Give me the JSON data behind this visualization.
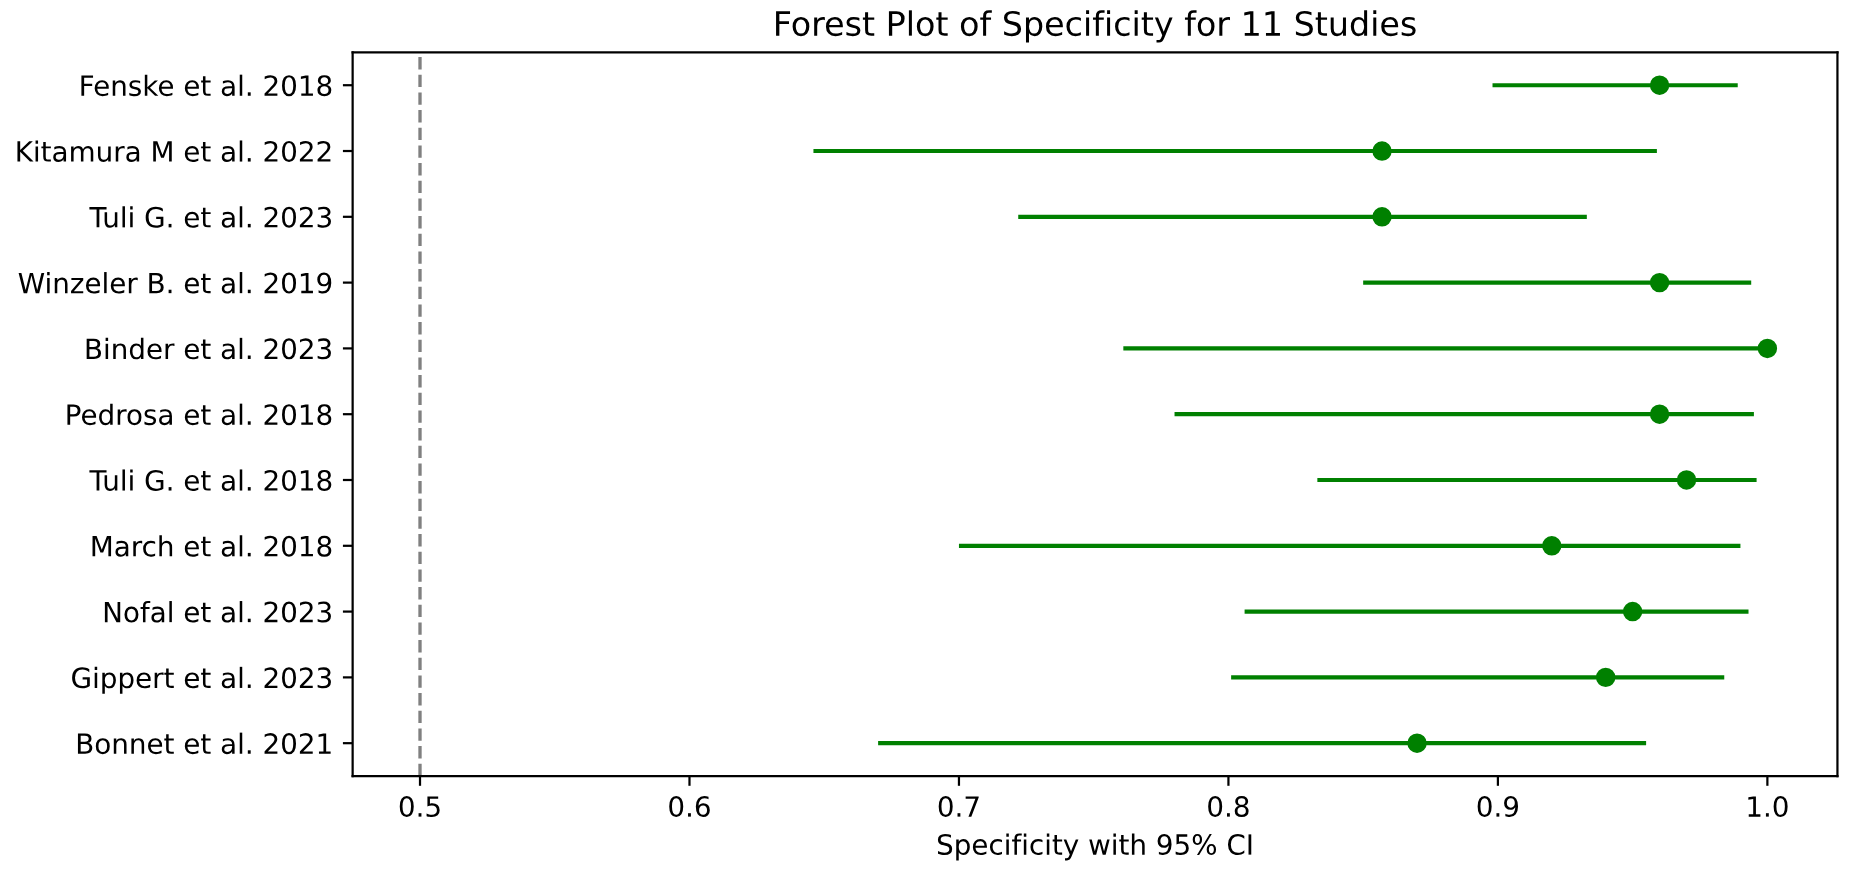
{
  "chart_data": {
    "type": "scatter",
    "orientation": "horizontal",
    "title": "Forest Plot of Specificity for 11 Studies",
    "xlabel": "Specificity with 95% CI",
    "categories": [
      "Fenske et al. 2018",
      "Kitamura M et al. 2022",
      "Tuli G. et al. 2023",
      "Winzeler B. et al. 2019",
      "Binder et al. 2023",
      "Pedrosa et al. 2018",
      "Tuli G. et al. 2018",
      "March et al. 2018",
      "Nofal et al. 2023",
      "Gippert et al. 2023",
      "Bonnet et al. 2021"
    ],
    "values": [
      0.96,
      0.857,
      0.857,
      0.96,
      1.0,
      0.96,
      0.97,
      0.92,
      0.95,
      0.94,
      0.87
    ],
    "errors": [
      [
        0.898,
        0.989
      ],
      [
        0.646,
        0.959
      ],
      [
        0.722,
        0.933
      ],
      [
        0.85,
        0.994
      ],
      [
        0.761,
        1.0
      ],
      [
        0.78,
        0.995
      ],
      [
        0.833,
        0.996
      ],
      [
        0.7,
        0.99
      ],
      [
        0.806,
        0.993
      ],
      [
        0.801,
        0.984
      ],
      [
        0.67,
        0.955
      ]
    ],
    "color": "#008000",
    "marker": "circle",
    "xlim": [
      0.475,
      1.026
    ],
    "xticks": [
      0.5,
      0.6,
      0.7,
      0.8,
      0.9,
      {
        "value": 1.0,
        "label": "1.0"
      }
    ],
    "ref_lines": [
      {
        "axis": "x",
        "value": 0.5,
        "label": null,
        "color": "#808080",
        "line_style": "dashed"
      }
    ],
    "grid": false
  }
}
